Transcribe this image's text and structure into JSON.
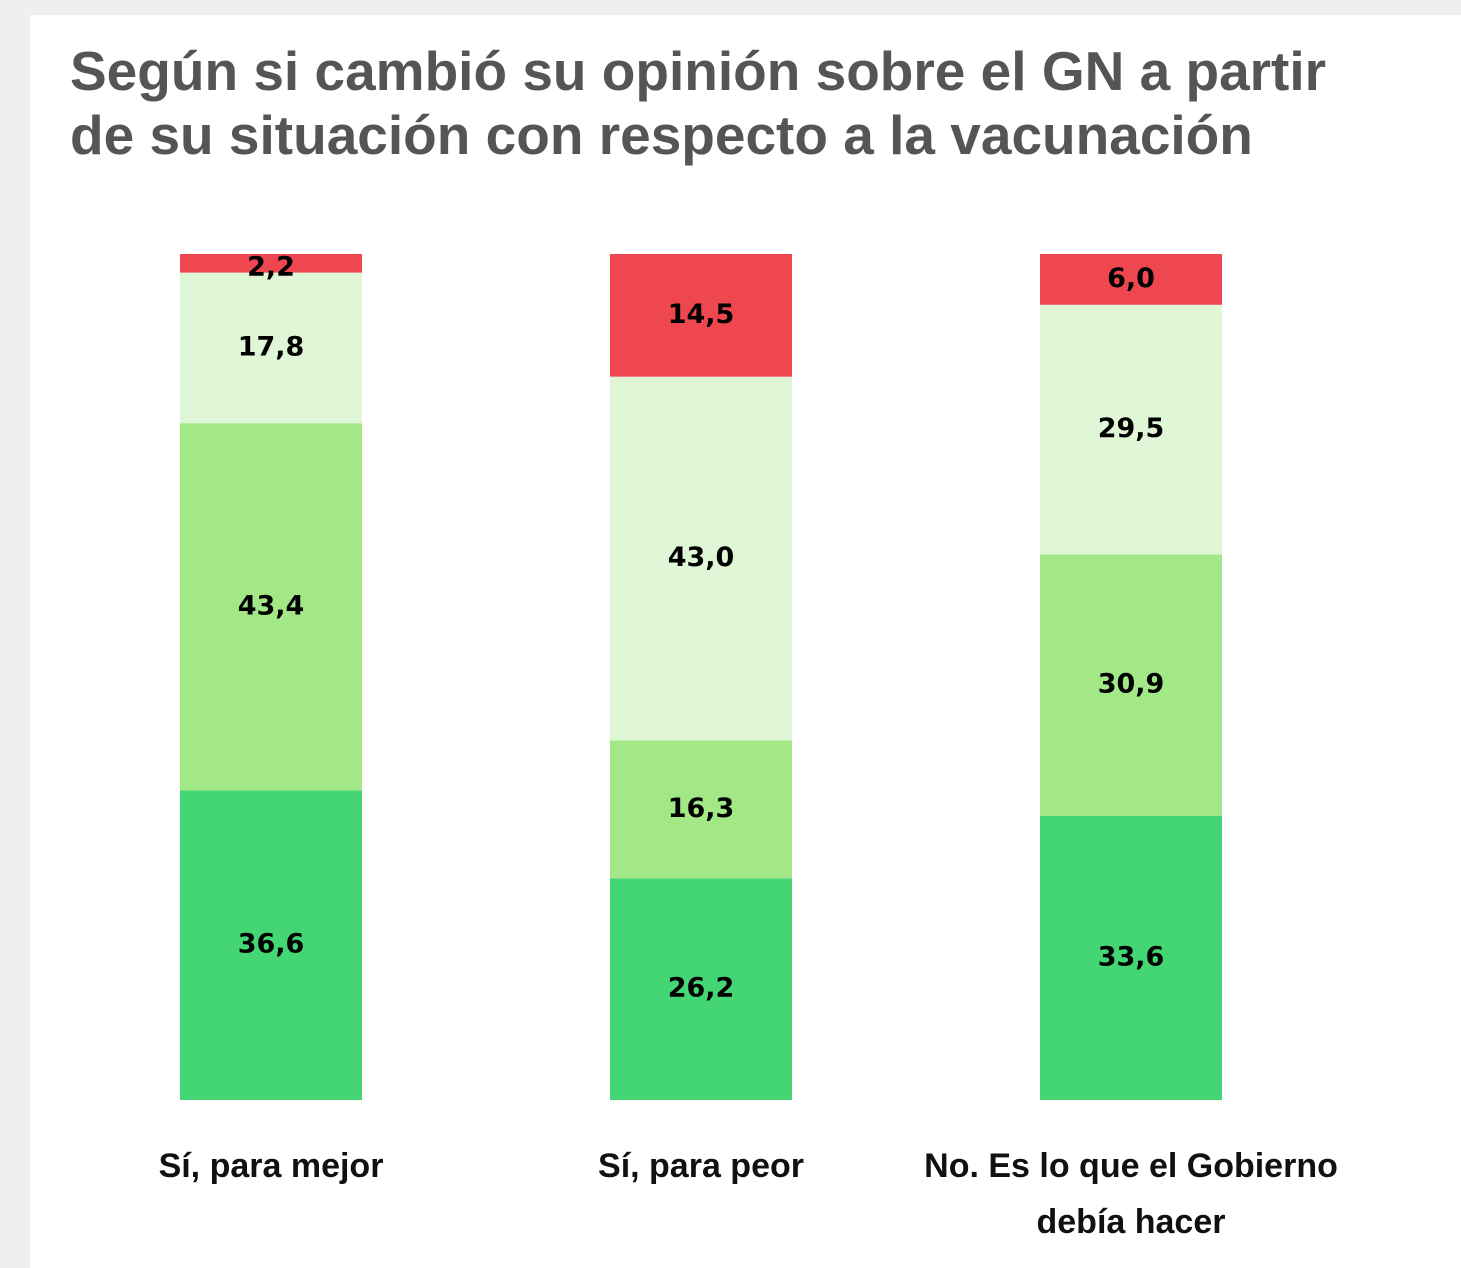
{
  "chart_data": {
    "type": "stacked_bar",
    "title": [
      "Según si cambió su opinión sobre el GN a partir",
      "de su situación con respecto a la vacunación"
    ],
    "categories": [
      "Sí, para mejor",
      "Sí, para peor",
      "No. Es lo que el Gobierno debía hacer"
    ],
    "ylim": [
      0,
      100
    ],
    "series": [
      {
        "color": "#44d574",
        "values": [
          36.6,
          26.2,
          33.6
        ],
        "value_labels": [
          "36,6",
          "26,2",
          "33,6"
        ]
      },
      {
        "color": "#a3e887",
        "values": [
          43.4,
          16.3,
          30.9
        ],
        "value_labels": [
          "43,4",
          "16,3",
          "30,9"
        ]
      },
      {
        "color": "#dff7d6",
        "values": [
          17.8,
          43.0,
          29.5
        ],
        "value_labels": [
          "17,8",
          "43,0",
          "29,5"
        ]
      },
      {
        "color": "#ee4750",
        "values": [
          2.2,
          14.5,
          6.0
        ],
        "value_labels": [
          "2,2",
          "14,5",
          "6,0"
        ]
      }
    ]
  }
}
